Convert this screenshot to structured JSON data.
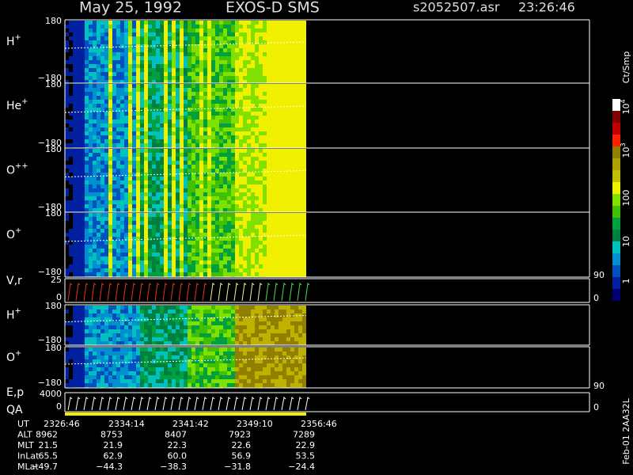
{
  "header": {
    "date": "May 25, 1992",
    "instrument": "EXOS-D SMS",
    "file": "s2052507.asr",
    "time": "23:26:46"
  },
  "panels": [
    {
      "label": "H",
      "sup": "+",
      "top": "180",
      "bottom": "−180"
    },
    {
      "label": "He",
      "sup": "+",
      "top": "180",
      "bottom": "−180"
    },
    {
      "label": "O",
      "sup": "++",
      "top": "180",
      "bottom": "−180"
    },
    {
      "label": "O",
      "sup": "+",
      "top": "180",
      "bottom": "−180",
      "right": "90"
    },
    {
      "label": "V,r",
      "top": "25",
      "bottom": "0",
      "right": "0"
    },
    {
      "label": "H",
      "sup": "+",
      "top": "180",
      "bottom": "−180"
    },
    {
      "label": "O",
      "sup": "+",
      "top": "180",
      "bottom": "−180",
      "right": "90"
    },
    {
      "label": "E,p",
      "label2": "QA",
      "top": "4000",
      "bottom": "0",
      "right": "0"
    }
  ],
  "colorbar": {
    "unit": "Ct/Smp",
    "labels": [
      {
        "text": "10",
        "sup": "4"
      },
      {
        "text": "10",
        "sup": "3"
      },
      {
        "text": "100"
      },
      {
        "text": "10"
      },
      {
        "text": "1"
      }
    ]
  },
  "footer": {
    "rows": [
      [
        "UT",
        "2326:46",
        "2334:14",
        "2341:42",
        "2349:10",
        "2356:46"
      ],
      [
        "ALT",
        "8962",
        "8753",
        "8407",
        "7923",
        "7289"
      ],
      [
        "MLT",
        "21.5",
        "21.9",
        "22.3",
        "22.6",
        "22.9"
      ],
      [
        "InLat",
        "65.5",
        "62.9",
        "60.0",
        "56.9",
        "53.5"
      ],
      [
        "MLat",
        "−49.7",
        "−44.3",
        "−38.3",
        "−31.8",
        "−24.4"
      ]
    ],
    "note": "Feb-01 2AA32L"
  }
}
